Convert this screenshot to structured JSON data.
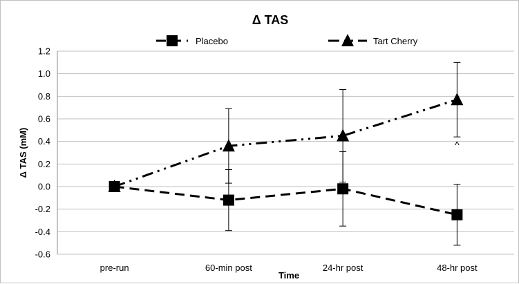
{
  "chart_data": {
    "type": "line",
    "title": "Δ TAS",
    "xlabel": "Time",
    "ylabel": "Δ TAS (mM)",
    "categories": [
      "pre-run",
      "60-min post",
      "24-hr post",
      "48-hr post"
    ],
    "ylim": [
      -0.6,
      1.2
    ],
    "yticks": [
      -0.6,
      -0.4,
      -0.2,
      0.0,
      0.2,
      0.4,
      0.6,
      0.8,
      1.0,
      1.2
    ],
    "ytick_labels": [
      "-0.6",
      "-0.4",
      "-0.2",
      "0.0",
      "0.2",
      "0.4",
      "0.6",
      "0.8",
      "1.0",
      "1.2"
    ],
    "grid": true,
    "legend_position": "top",
    "series": [
      {
        "name": "Placebo",
        "marker": "square",
        "line_style": "dashed",
        "values": [
          0.0,
          -0.12,
          -0.02,
          -0.25
        ],
        "error": [
          0.0,
          0.27,
          0.33,
          0.27
        ]
      },
      {
        "name": "Tart Cherry",
        "marker": "triangle",
        "line_style": "dash-dot-dot",
        "values": [
          0.0,
          0.36,
          0.45,
          0.77
        ],
        "error": [
          0.0,
          0.33,
          0.41,
          0.33
        ]
      }
    ],
    "annotations": [
      {
        "text": "^",
        "category": "48-hr post",
        "y": 0.34
      }
    ],
    "colors": {
      "line": "#000000",
      "grid": "#bfbfbf"
    }
  }
}
